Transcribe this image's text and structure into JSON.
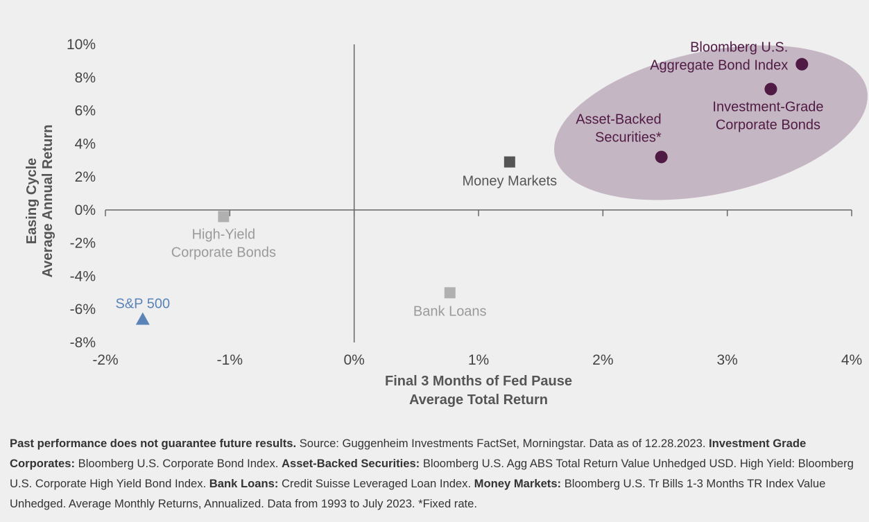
{
  "chart_data": {
    "type": "scatter",
    "title": "",
    "xlabel": [
      "Final 3 Months of Fed Pause",
      "Average Total Return"
    ],
    "ylabel": [
      "Easing Cycle",
      "Average Annual Return"
    ],
    "xlim": [
      -2,
      4
    ],
    "ylim": [
      -8,
      10
    ],
    "x_ticks": [
      -2,
      -1,
      0,
      1,
      2,
      3,
      4
    ],
    "x_tick_labels": [
      "-2%",
      "-1%",
      "0%",
      "1%",
      "2%",
      "3%",
      "4%"
    ],
    "y_ticks": [
      10,
      8,
      6,
      4,
      2,
      0,
      -2,
      -4,
      -6,
      -8
    ],
    "y_tick_labels": [
      "10%",
      "8%",
      "6%",
      "4%",
      "2%",
      "0%",
      "-2%",
      "-4%",
      "-6%",
      "-8%"
    ],
    "grid": false,
    "legend": "none",
    "points": [
      {
        "label": [
          "Bloomberg U.S.",
          "Aggregate Bond Index"
        ],
        "x": 3.6,
        "y": 8.8,
        "marker": "circle",
        "color": "#4f1a44",
        "label_color": "#4f1a44"
      },
      {
        "label": [
          "Investment-Grade",
          "Corporate Bonds"
        ],
        "x": 3.35,
        "y": 7.3,
        "marker": "circle",
        "color": "#4f1a44",
        "label_color": "#4f1a44"
      },
      {
        "label": [
          "Asset-Backed",
          "Securities*"
        ],
        "x": 2.47,
        "y": 3.2,
        "marker": "circle",
        "color": "#4f1a44",
        "label_color": "#4f1a44"
      },
      {
        "label": [
          "Money Markets"
        ],
        "x": 1.25,
        "y": 2.9,
        "marker": "square",
        "color": "#555555",
        "label_color": "#555555"
      },
      {
        "label": [
          "High-Yield",
          "Corporate Bonds"
        ],
        "x": -1.05,
        "y": -0.4,
        "marker": "square",
        "color": "#b0b0b0",
        "label_color": "#9a9a9a"
      },
      {
        "label": [
          "Bank Loans"
        ],
        "x": 0.77,
        "y": -5.0,
        "marker": "square",
        "color": "#b0b0b0",
        "label_color": "#9a9a9a"
      },
      {
        "label": [
          "S&P 500"
        ],
        "x": -1.7,
        "y": -6.6,
        "marker": "triangle",
        "color": "#5a84b8",
        "label_color": "#5a84b8"
      }
    ],
    "highlight_ellipse_color": "#c5b6c3"
  },
  "footnote": [
    {
      "text": "Past performance does not guarantee future results.",
      "bold": true
    },
    {
      "text": " Source: Guggenheim Investments FactSet, Morningstar. Data as of 12.28.2023. ",
      "bold": false
    },
    {
      "text": "Investment Grade Corporates:",
      "bold": true
    },
    {
      "text": " Bloomberg U.S. Corporate Bond Index. ",
      "bold": false
    },
    {
      "text": "Asset-Backed Securities:",
      "bold": true
    },
    {
      "text": " Bloomberg U.S. Agg ABS Total Return Value Unhedged USD. High Yield: Bloomberg U.S. Corporate High Yield Bond Index. ",
      "bold": false
    },
    {
      "text": "Bank Loans:",
      "bold": true
    },
    {
      "text": " Credit Suisse Leveraged Loan Index. ",
      "bold": false
    },
    {
      "text": "Money Markets:",
      "bold": true
    },
    {
      "text": " Bloomberg U.S. Tr Bills 1-3 Months TR Index Value Unhedged. Average Monthly Returns, Annualized. Data from 1993 to July 2023. *Fixed rate.",
      "bold": false
    }
  ]
}
